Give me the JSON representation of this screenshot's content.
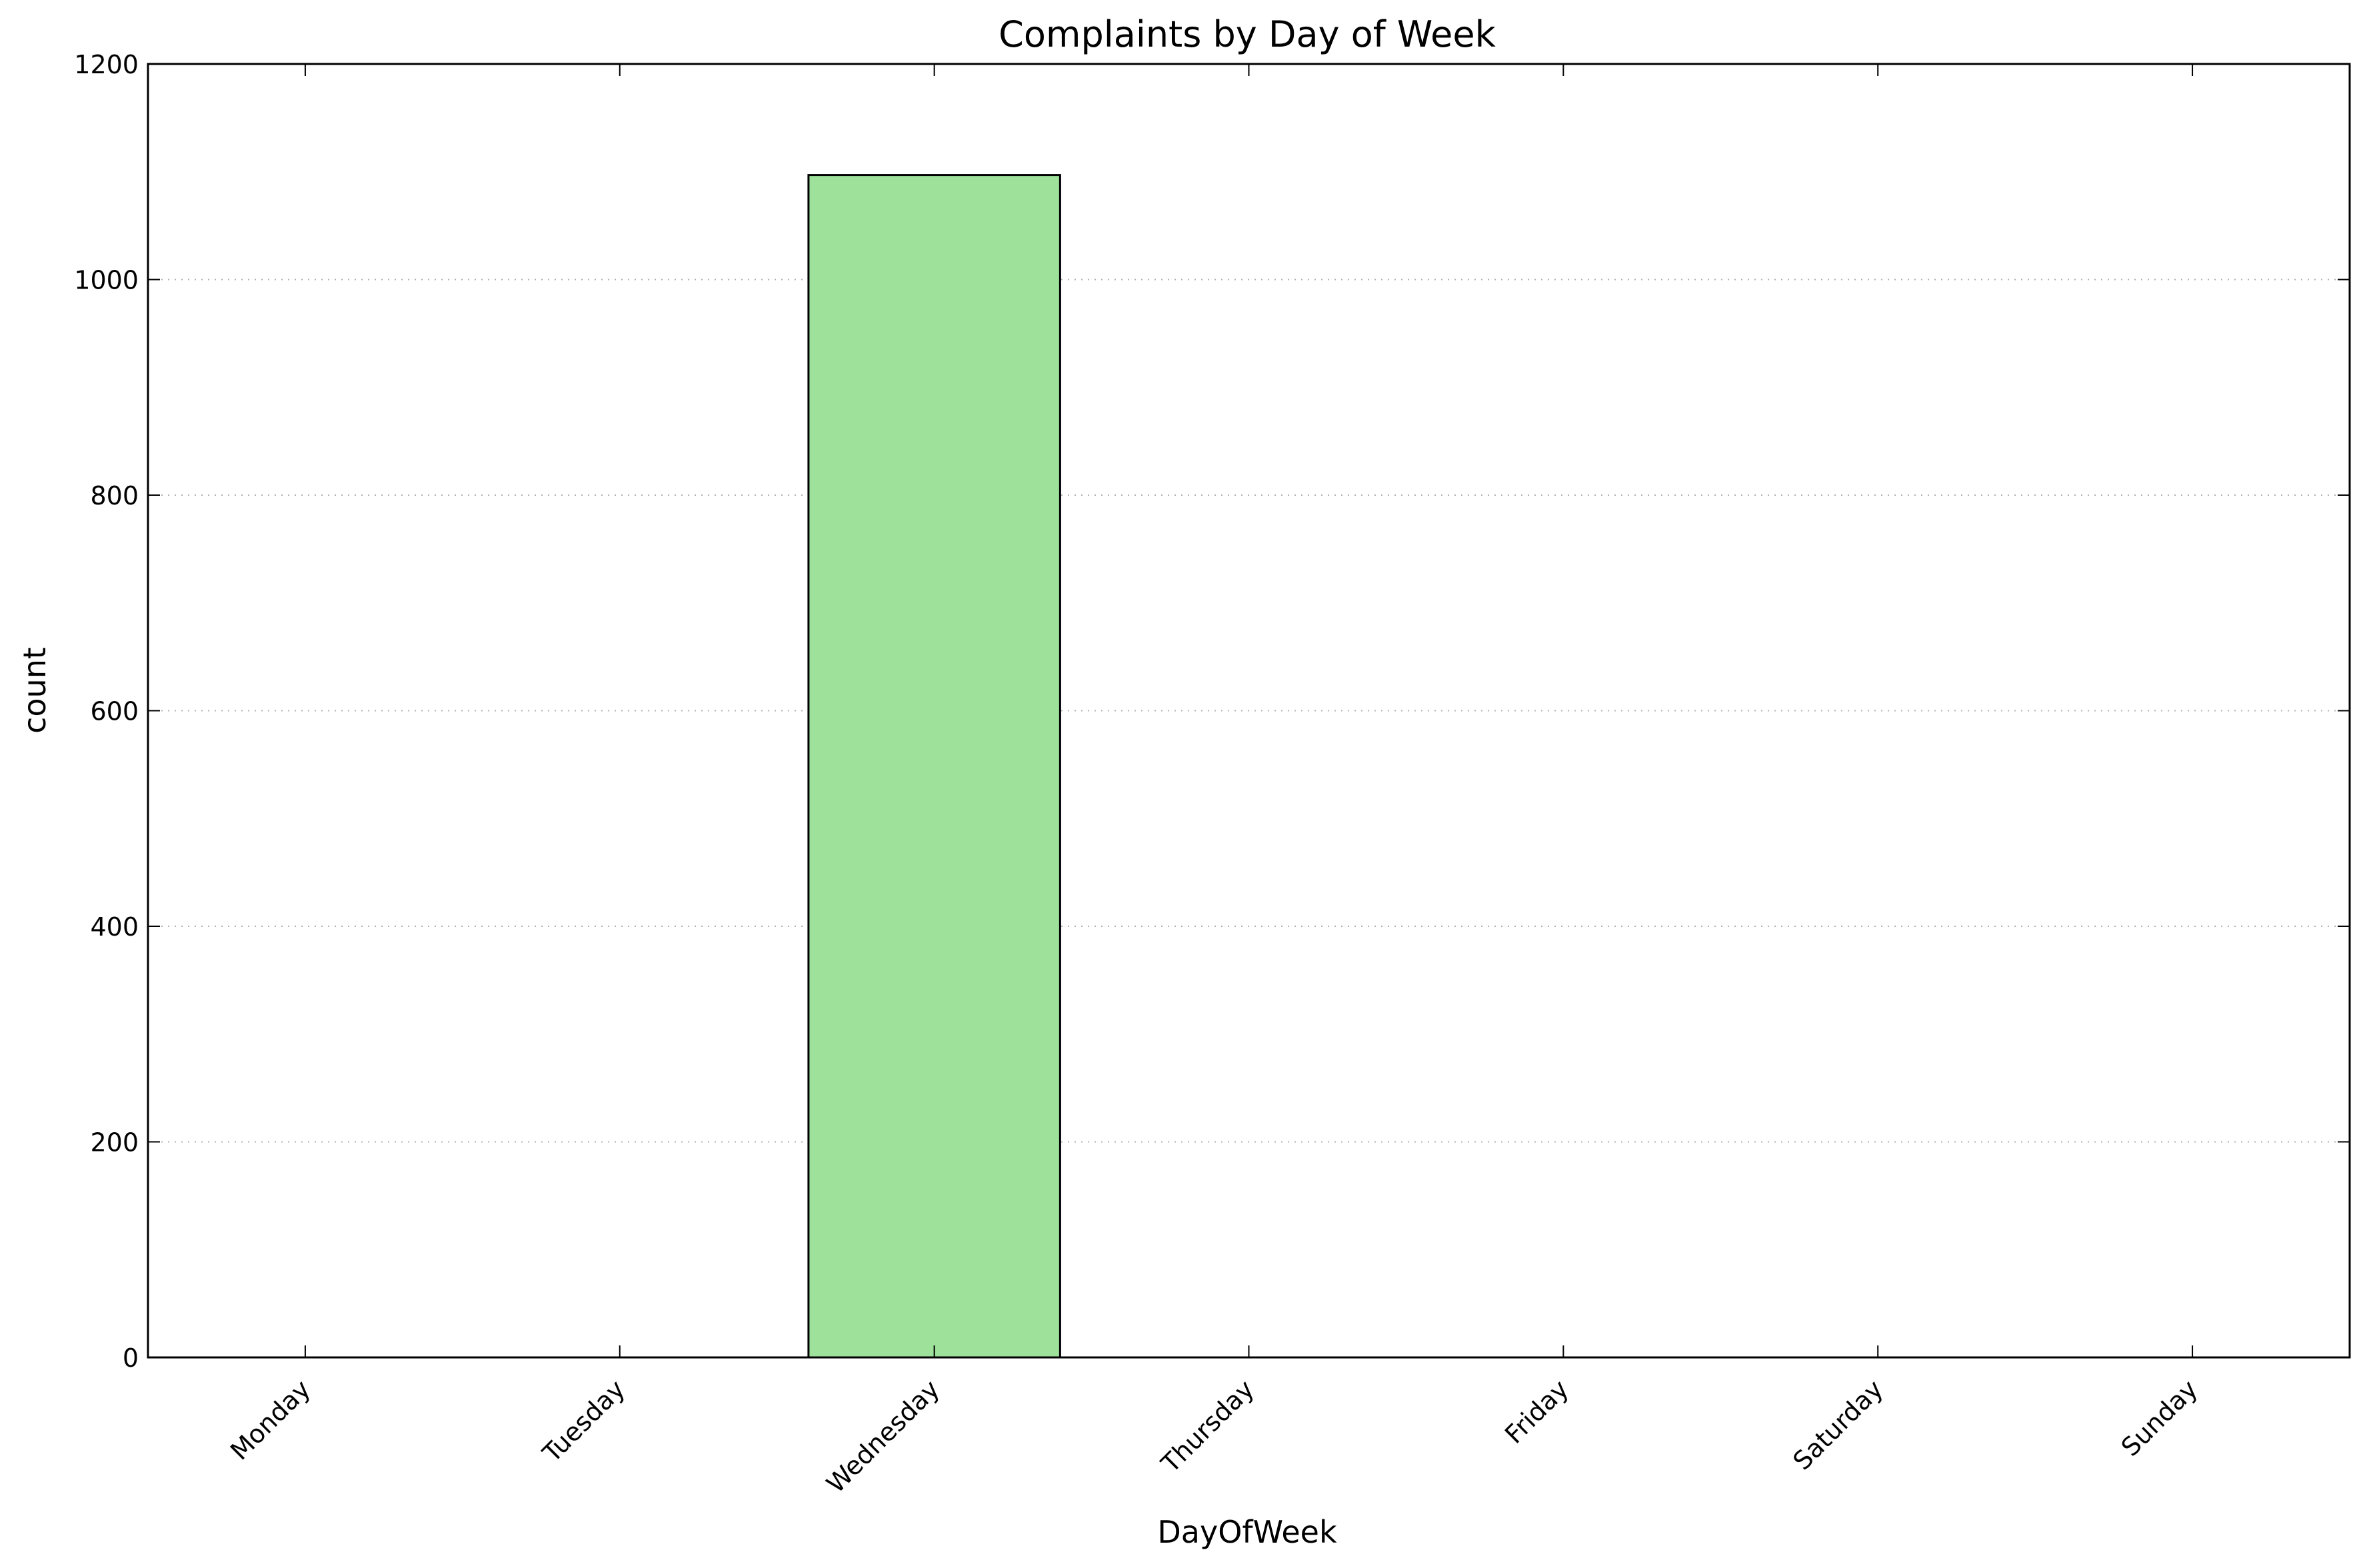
{
  "chart_data": {
    "type": "bar",
    "title": "Complaints by Day of Week",
    "xlabel": "DayOfWeek",
    "ylabel": "count",
    "categories": [
      "Monday",
      "Tuesday",
      "Wednesday",
      "Thursday",
      "Friday",
      "Saturday",
      "Sunday"
    ],
    "values": [
      0,
      0,
      1097,
      0,
      0,
      0,
      0
    ],
    "ylim": [
      0,
      1200
    ],
    "yticks": [
      0,
      200,
      400,
      600,
      800,
      1000,
      1200
    ],
    "grid": "horizontal dotted",
    "bar_color": "#9de19a",
    "edge_color": "#000000"
  }
}
